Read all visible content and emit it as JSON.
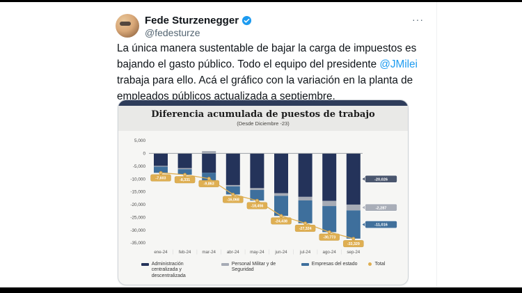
{
  "tweet": {
    "author": "Fede Sturzenegger",
    "handle": "@fedesturze",
    "more_label": "···",
    "body_pre": "La única manera sustentable de bajar la carga de impuestos es bajando el gasto público. Todo el equipo del presidente ",
    "body_link": "@JMilei",
    "body_post": " trabaja para ello. Acá el gráfico con la variación en la planta de empleados públicos actualizada a septiembre.",
    "link_color": "#1d9bf0",
    "verified_color": "#1d9bf0"
  },
  "chart_data": {
    "type": "bar",
    "stacked": true,
    "title": "Diferencia acumulada de puestos de trabajo",
    "subtitle": "(Desde Diciembre -23)",
    "categories": [
      "ene-24",
      "feb-24",
      "mar-24",
      "abr-24",
      "may-24",
      "jun-24",
      "jul-24",
      "ago-24",
      "sep-24"
    ],
    "series": [
      {
        "name": "Administración centralizada y descentralizada",
        "color": "#24335a",
        "values": [
          -4900,
          -5800,
          -7600,
          -12400,
          -13600,
          -15600,
          -17000,
          -18600,
          -20026
        ]
      },
      {
        "name": "Personal Militar y de Seguridad",
        "color": "#a6abb5",
        "values": [
          -300,
          -400,
          900,
          -500,
          -700,
          -1000,
          -1400,
          -2000,
          -2287
        ]
      },
      {
        "name": "Empresas del estado",
        "color": "#3e6f9c",
        "values": [
          -2403,
          -2131,
          -3163,
          -3168,
          -4156,
          -7838,
          -8924,
          -10173,
          -11016
        ]
      }
    ],
    "total": {
      "name": "Total",
      "color": "#dfaf52",
      "values": [
        -7603,
        -8331,
        -9863,
        -16068,
        -18456,
        -24438,
        -27324,
        -30773,
        -33329
      ]
    },
    "side_labels": [
      {
        "value": -20026,
        "color": "#4a566e"
      },
      {
        "value": -2287,
        "color": "#a9aeb8"
      },
      {
        "value": -11016,
        "color": "#41709b"
      }
    ],
    "ylim": [
      -35000,
      5000
    ],
    "yticks": [
      5000,
      0,
      -5000,
      -10000,
      -15000,
      -20000,
      -25000,
      -30000,
      -35000
    ],
    "grid": false,
    "legend_position": "bottom"
  }
}
